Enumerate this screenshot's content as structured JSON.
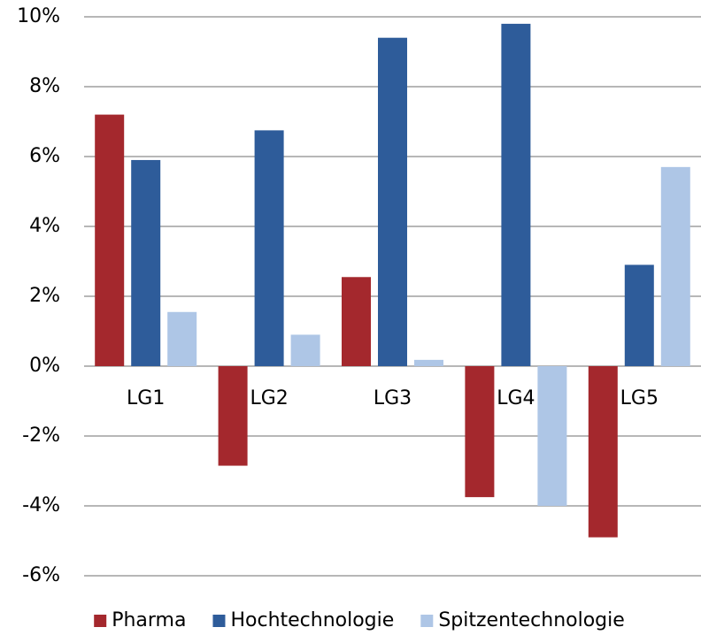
{
  "chart_data": {
    "type": "bar",
    "categories": [
      "LG1",
      "LG2",
      "LG3",
      "LG4",
      "LG5"
    ],
    "series": [
      {
        "name": "Pharma",
        "color": "#a4282d",
        "values": [
          7.2,
          -2.85,
          2.55,
          -3.75,
          -4.9
        ]
      },
      {
        "name": "Hochtechnologie",
        "color": "#2e5c9a",
        "values": [
          5.9,
          6.75,
          9.4,
          9.8,
          2.9
        ]
      },
      {
        "name": "Spitzentechnologie",
        "color": "#aec6e6",
        "values": [
          1.55,
          0.9,
          0.18,
          -4.0,
          5.7
        ]
      }
    ],
    "ylim": [
      -6,
      10
    ],
    "yticks": [
      {
        "value": -6,
        "label": "-6%"
      },
      {
        "value": -4,
        "label": "-4%"
      },
      {
        "value": -2,
        "label": "-2%"
      },
      {
        "value": 0,
        "label": "0%"
      },
      {
        "value": 2,
        "label": "2%"
      },
      {
        "value": 4,
        "label": "4%"
      },
      {
        "value": 6,
        "label": "6%"
      },
      {
        "value": 8,
        "label": "8%"
      },
      {
        "value": 10,
        "label": "10%"
      }
    ],
    "grid": true,
    "legend": "bottom"
  }
}
